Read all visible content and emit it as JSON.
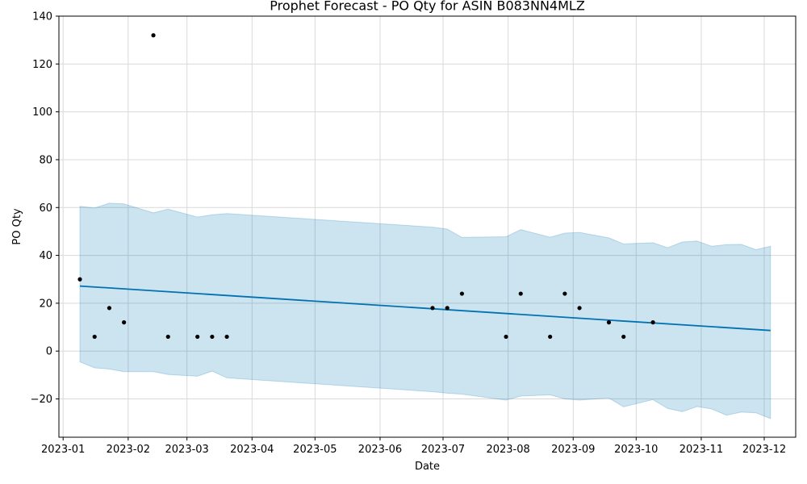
{
  "chart_data": {
    "type": "line",
    "title": "Prophet Forecast - PO Qty for ASIN B083NN4MLZ",
    "xlabel": "Date",
    "ylabel": "PO Qty",
    "x_axis_type": "date",
    "xlim": [
      "2022-12-30",
      "2023-12-16"
    ],
    "ylim": [
      -36,
      140
    ],
    "grid": true,
    "legend": "none",
    "x_ticks": [
      {
        "value": "2023-01-01",
        "label": "2023-01"
      },
      {
        "value": "2023-02-01",
        "label": "2023-02"
      },
      {
        "value": "2023-03-01",
        "label": "2023-03"
      },
      {
        "value": "2023-04-01",
        "label": "2023-04"
      },
      {
        "value": "2023-05-01",
        "label": "2023-05"
      },
      {
        "value": "2023-06-01",
        "label": "2023-06"
      },
      {
        "value": "2023-07-01",
        "label": "2023-07"
      },
      {
        "value": "2023-08-01",
        "label": "2023-08"
      },
      {
        "value": "2023-09-01",
        "label": "2023-09"
      },
      {
        "value": "2023-10-01",
        "label": "2023-10"
      },
      {
        "value": "2023-11-01",
        "label": "2023-11"
      },
      {
        "value": "2023-12-01",
        "label": "2023-12"
      }
    ],
    "y_ticks": [
      {
        "value": -20,
        "label": "−20"
      },
      {
        "value": 0,
        "label": "0"
      },
      {
        "value": 20,
        "label": "20"
      },
      {
        "value": 40,
        "label": "40"
      },
      {
        "value": 60,
        "label": "60"
      },
      {
        "value": 80,
        "label": "80"
      },
      {
        "value": 100,
        "label": "100"
      },
      {
        "value": 120,
        "label": "120"
      },
      {
        "value": 140,
        "label": "140"
      }
    ],
    "colors": {
      "forecast": "#0072B2",
      "interval_fill": "#0072B2",
      "interval_opacity": 0.2,
      "observed": "#000000",
      "grid": "#d9d9d9"
    },
    "series": [
      {
        "kind": "observed",
        "points": [
          {
            "x": "2023-01-09",
            "y": 30
          },
          {
            "x": "2023-01-16",
            "y": 6
          },
          {
            "x": "2023-01-23",
            "y": 18
          },
          {
            "x": "2023-01-30",
            "y": 12
          },
          {
            "x": "2023-02-13",
            "y": 132
          },
          {
            "x": "2023-02-20",
            "y": 6
          },
          {
            "x": "2023-03-06",
            "y": 6
          },
          {
            "x": "2023-03-13",
            "y": 6
          },
          {
            "x": "2023-03-20",
            "y": 6
          },
          {
            "x": "2023-06-26",
            "y": 18
          },
          {
            "x": "2023-07-03",
            "y": 18
          },
          {
            "x": "2023-07-10",
            "y": 24
          },
          {
            "x": "2023-07-31",
            "y": 6
          },
          {
            "x": "2023-08-07",
            "y": 24
          },
          {
            "x": "2023-08-21",
            "y": 6
          },
          {
            "x": "2023-08-28",
            "y": 24
          },
          {
            "x": "2023-09-04",
            "y": 18
          },
          {
            "x": "2023-09-18",
            "y": 12
          },
          {
            "x": "2023-09-25",
            "y": 6
          },
          {
            "x": "2023-10-09",
            "y": 12
          }
        ]
      },
      {
        "kind": "forecast",
        "points": [
          {
            "x": "2023-01-09",
            "y": 27.2
          },
          {
            "x": "2023-12-04",
            "y": 8.6
          }
        ]
      },
      {
        "kind": "interval",
        "upper": [
          {
            "x": "2023-01-09",
            "y": 60.5
          },
          {
            "x": "2023-01-16",
            "y": 59.8
          },
          {
            "x": "2023-01-23",
            "y": 61.8
          },
          {
            "x": "2023-01-30",
            "y": 61.5
          },
          {
            "x": "2023-02-13",
            "y": 57.8
          },
          {
            "x": "2023-02-20",
            "y": 59.3
          },
          {
            "x": "2023-03-06",
            "y": 56
          },
          {
            "x": "2023-03-13",
            "y": 57
          },
          {
            "x": "2023-03-20",
            "y": 57.5
          },
          {
            "x": "2023-06-26",
            "y": 51.8
          },
          {
            "x": "2023-07-03",
            "y": 51
          },
          {
            "x": "2023-07-10",
            "y": 47.5
          },
          {
            "x": "2023-07-31",
            "y": 47.8
          },
          {
            "x": "2023-08-07",
            "y": 50.8
          },
          {
            "x": "2023-08-21",
            "y": 47.6
          },
          {
            "x": "2023-08-28",
            "y": 49.3
          },
          {
            "x": "2023-09-04",
            "y": 49.6
          },
          {
            "x": "2023-09-18",
            "y": 47.3
          },
          {
            "x": "2023-09-25",
            "y": 44.8
          },
          {
            "x": "2023-10-09",
            "y": 45.3
          },
          {
            "x": "2023-10-16",
            "y": 43.2
          },
          {
            "x": "2023-10-23",
            "y": 45.6
          },
          {
            "x": "2023-10-30",
            "y": 46
          },
          {
            "x": "2023-11-06",
            "y": 43.8
          },
          {
            "x": "2023-11-13",
            "y": 44.5
          },
          {
            "x": "2023-11-20",
            "y": 44.6
          },
          {
            "x": "2023-11-27",
            "y": 42.4
          },
          {
            "x": "2023-12-04",
            "y": 43.8
          }
        ],
        "lower": [
          {
            "x": "2023-01-09",
            "y": -4.5
          },
          {
            "x": "2023-01-16",
            "y": -7
          },
          {
            "x": "2023-01-23",
            "y": -7.5
          },
          {
            "x": "2023-01-30",
            "y": -8.6
          },
          {
            "x": "2023-02-13",
            "y": -8.6
          },
          {
            "x": "2023-02-20",
            "y": -9.8
          },
          {
            "x": "2023-03-06",
            "y": -10.5
          },
          {
            "x": "2023-03-13",
            "y": -8.4
          },
          {
            "x": "2023-03-20",
            "y": -11.2
          },
          {
            "x": "2023-06-26",
            "y": -17
          },
          {
            "x": "2023-07-03",
            "y": -17.6
          },
          {
            "x": "2023-07-10",
            "y": -18
          },
          {
            "x": "2023-07-31",
            "y": -20.5
          },
          {
            "x": "2023-08-07",
            "y": -18.8
          },
          {
            "x": "2023-08-21",
            "y": -18.3
          },
          {
            "x": "2023-08-28",
            "y": -20
          },
          {
            "x": "2023-09-04",
            "y": -20.5
          },
          {
            "x": "2023-09-18",
            "y": -19.6
          },
          {
            "x": "2023-09-25",
            "y": -23.3
          },
          {
            "x": "2023-10-09",
            "y": -20.3
          },
          {
            "x": "2023-10-16",
            "y": -24
          },
          {
            "x": "2023-10-23",
            "y": -25.3
          },
          {
            "x": "2023-10-30",
            "y": -23.2
          },
          {
            "x": "2023-11-06",
            "y": -24.2
          },
          {
            "x": "2023-11-13",
            "y": -26.8
          },
          {
            "x": "2023-11-20",
            "y": -25.5
          },
          {
            "x": "2023-11-27",
            "y": -25.8
          },
          {
            "x": "2023-12-04",
            "y": -28.2
          }
        ]
      }
    ]
  }
}
